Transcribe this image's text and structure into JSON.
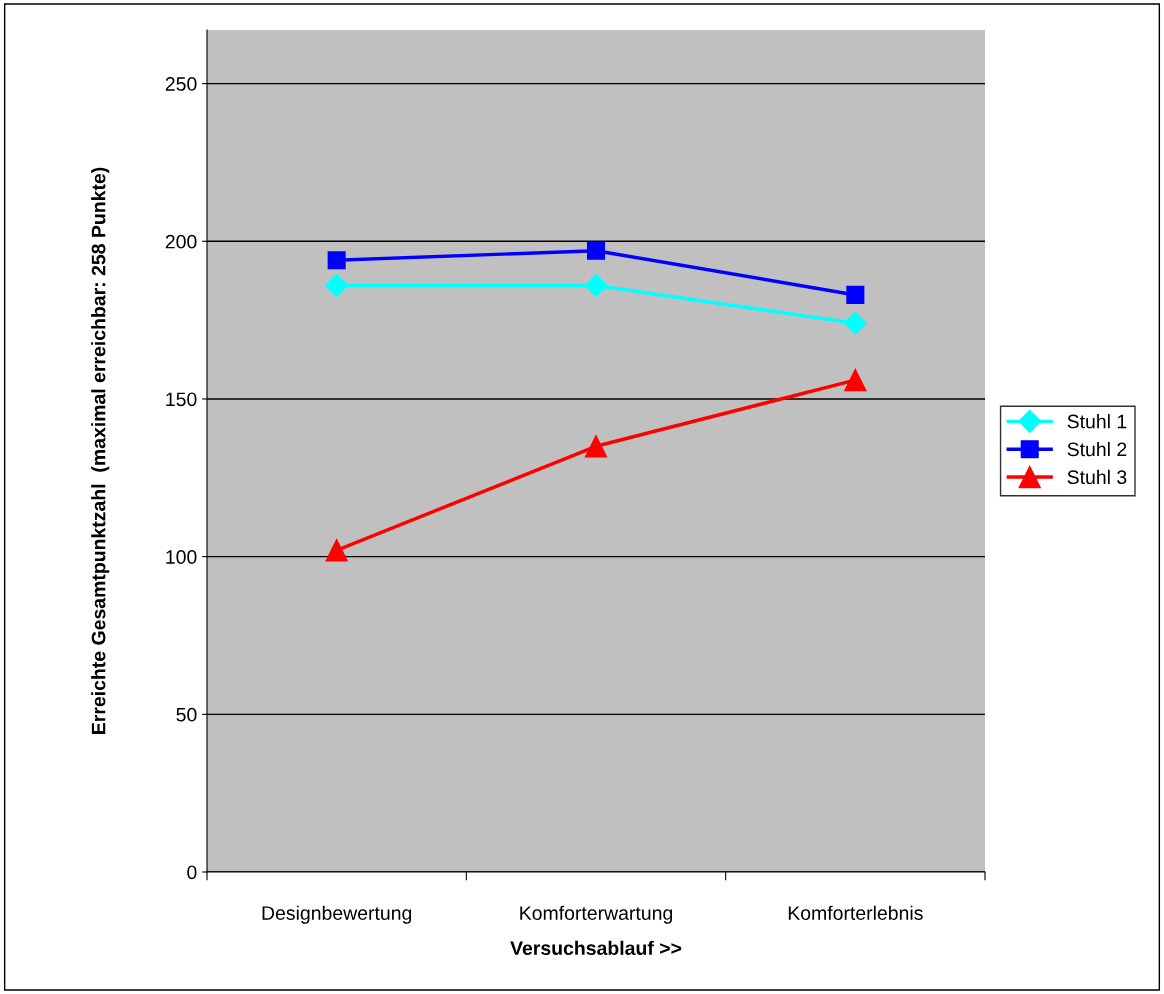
{
  "chart_data": {
    "type": "line",
    "xlabel": "Versuchsablauf >>",
    "ylabel": "Erreichte Gesamtpunktzahl  (maximal erreichbar: 258 Punkte)",
    "categories": [
      "Designbewertung",
      "Komforterwartung",
      "Komforterlebnis"
    ],
    "series": [
      {
        "name": "Stuhl 1",
        "color": "#00ffff",
        "marker": "diamond",
        "values": [
          186,
          186,
          174
        ]
      },
      {
        "name": "Stuhl 2",
        "color": "#0000ff",
        "marker": "square",
        "values": [
          194,
          197,
          183
        ]
      },
      {
        "name": "Stuhl 3",
        "color": "#ff0000",
        "marker": "triangle",
        "values": [
          102,
          135,
          156
        ]
      }
    ],
    "ylim": [
      0,
      267
    ],
    "yticks": [
      0,
      50,
      100,
      150,
      200,
      250
    ],
    "grid": "y",
    "legend": "right"
  }
}
